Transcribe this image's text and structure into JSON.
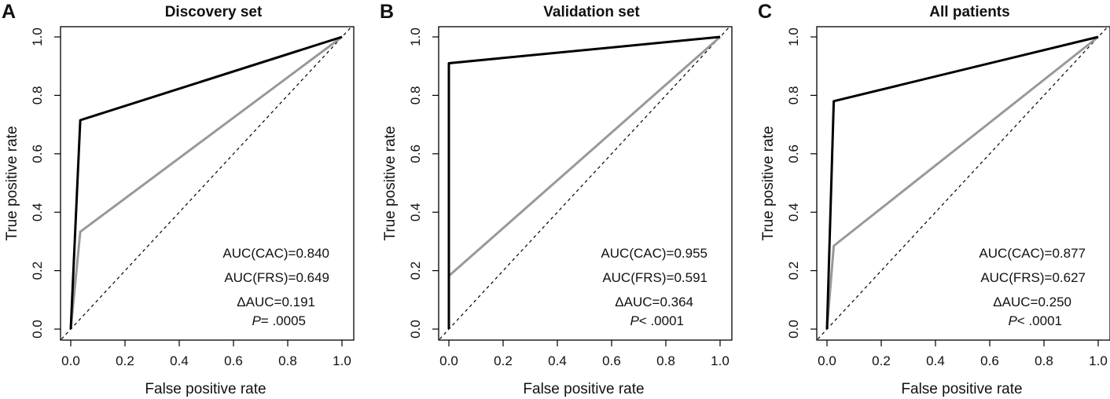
{
  "chart_data": [
    {
      "type": "line",
      "panel_label": "A",
      "title": "Discovery set",
      "xlabel": "False positive rate",
      "ylabel": "True positive rate",
      "xlim": [
        0,
        1
      ],
      "ylim": [
        0,
        1
      ],
      "xticks": [
        "0.0",
        "0.2",
        "0.4",
        "0.6",
        "0.8",
        "1.0"
      ],
      "yticks": [
        "0.0",
        "0.2",
        "0.4",
        "0.6",
        "0.8",
        "1.0"
      ],
      "grid": false,
      "series": [
        {
          "name": "AUC(CAC)",
          "color": "#000000",
          "x": [
            0,
            0.035,
            1
          ],
          "y": [
            0,
            0.715,
            1
          ]
        },
        {
          "name": "AUC(FRS)",
          "color": "#999999",
          "x": [
            0,
            0.035,
            1
          ],
          "y": [
            0,
            0.333,
            1
          ]
        },
        {
          "name": "",
          "color": "#000000",
          "dashed": true,
          "x": [
            0,
            1
          ],
          "y": [
            0,
            1
          ]
        }
      ],
      "annotations": {
        "auc_cac": "AUC(CAC)=0.840",
        "auc_frs": "AUC(FRS)=0.649",
        "delta_auc": "ΔAUC=0.191",
        "p_symbol": "P",
        "p_value": "= .0005"
      }
    },
    {
      "type": "line",
      "panel_label": "B",
      "title": "Validation set",
      "xlabel": "False positive rate",
      "ylabel": "True positive rate",
      "xlim": [
        0,
        1
      ],
      "ylim": [
        0,
        1
      ],
      "xticks": [
        "0.0",
        "0.2",
        "0.4",
        "0.6",
        "0.8",
        "1.0"
      ],
      "yticks": [
        "0.0",
        "0.2",
        "0.4",
        "0.6",
        "0.8",
        "1.0"
      ],
      "grid": false,
      "series": [
        {
          "name": "AUC(CAC)",
          "color": "#000000",
          "x": [
            0,
            0,
            1
          ],
          "y": [
            0,
            0.91,
            1
          ]
        },
        {
          "name": "AUC(FRS)",
          "color": "#999999",
          "x": [
            0,
            0,
            1
          ],
          "y": [
            0,
            0.182,
            1
          ]
        },
        {
          "name": "",
          "color": "#000000",
          "dashed": true,
          "x": [
            0,
            1
          ],
          "y": [
            0,
            1
          ]
        }
      ],
      "annotations": {
        "auc_cac": "AUC(CAC)=0.955",
        "auc_frs": "AUC(FRS)=0.591",
        "delta_auc": "ΔAUC=0.364",
        "p_symbol": "P",
        "p_value": "< .0001"
      }
    },
    {
      "type": "line",
      "panel_label": "C",
      "title": "All patients",
      "xlabel": "False positive rate",
      "ylabel": "True positive rate",
      "xlim": [
        0,
        1
      ],
      "ylim": [
        0,
        1
      ],
      "xticks": [
        "0.0",
        "0.2",
        "0.4",
        "0.6",
        "0.8",
        "1.0"
      ],
      "yticks": [
        "0.0",
        "0.2",
        "0.4",
        "0.6",
        "0.8",
        "1.0"
      ],
      "grid": false,
      "series": [
        {
          "name": "AUC(CAC)",
          "color": "#000000",
          "x": [
            0,
            0.025,
            1
          ],
          "y": [
            0,
            0.78,
            1
          ]
        },
        {
          "name": "AUC(FRS)",
          "color": "#999999",
          "x": [
            0,
            0.025,
            1
          ],
          "y": [
            0,
            0.285,
            1
          ]
        },
        {
          "name": "",
          "color": "#000000",
          "dashed": true,
          "x": [
            0,
            1
          ],
          "y": [
            0,
            1
          ]
        }
      ],
      "annotations": {
        "auc_cac": "AUC(CAC)=0.877",
        "auc_frs": "AUC(FRS)=0.627",
        "delta_auc": "ΔAUC=0.250",
        "p_symbol": "P",
        "p_value": "< .0001"
      }
    }
  ]
}
